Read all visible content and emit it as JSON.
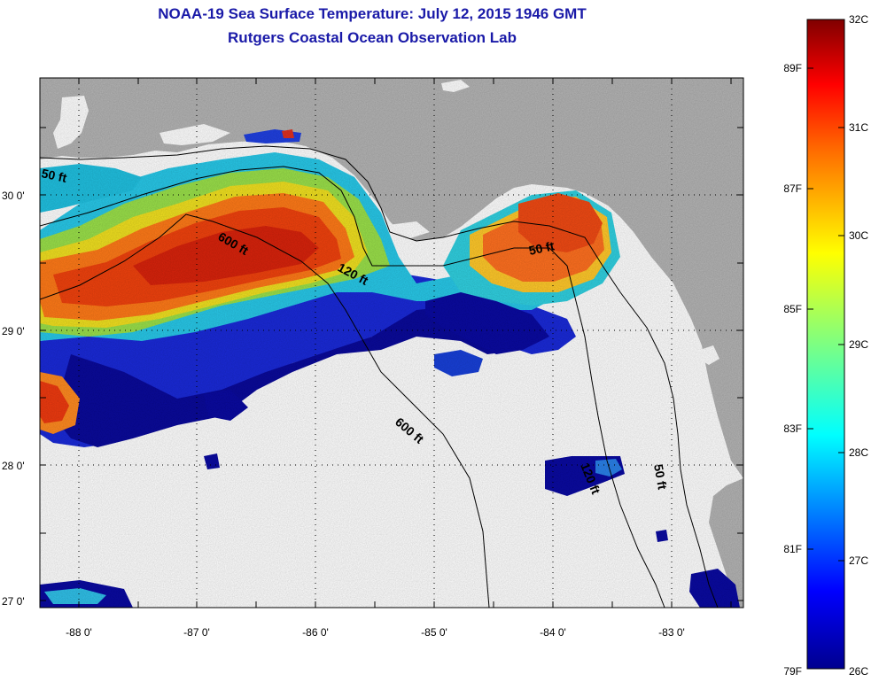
{
  "title": {
    "line1": "NOAA-19 Sea Surface Temperature:  July 12, 2015 1946 GMT",
    "line2": "Rutgers Coastal Ocean Observation Lab"
  },
  "axes": {
    "lat_labels": [
      "30 0'",
      "29 0'",
      "28 0'",
      "27 0'"
    ],
    "lon_labels": [
      "-88 0'",
      "-87 0'",
      "-86 0'",
      "-85 0'",
      "-84 0'",
      "-83 0'"
    ],
    "lat_range": [
      26.93,
      30.85
    ],
    "lon_range": [
      -88.33,
      -82.38
    ],
    "grid": "dotted"
  },
  "contours": {
    "labels": [
      "50 ft",
      "600 ft",
      "120 ft",
      "50 ft",
      "600 ft",
      "120 ft",
      "50 ft"
    ]
  },
  "colorbar": {
    "celsius_labels": [
      "32C",
      "31C",
      "30C",
      "29C",
      "28C",
      "27C",
      "26C"
    ],
    "fahrenheit_labels": [
      "89F",
      "87F",
      "85F",
      "83F",
      "81F",
      "79F"
    ],
    "range_c": [
      26,
      32
    ],
    "colors": [
      "#00008f",
      "#0000ff",
      "#00ffff",
      "#ffff00",
      "#ff0000",
      "#800000"
    ]
  },
  "colors": {
    "land": "#b4b4b4",
    "no_data": "#ffffff",
    "title": "#1a1aa8"
  }
}
